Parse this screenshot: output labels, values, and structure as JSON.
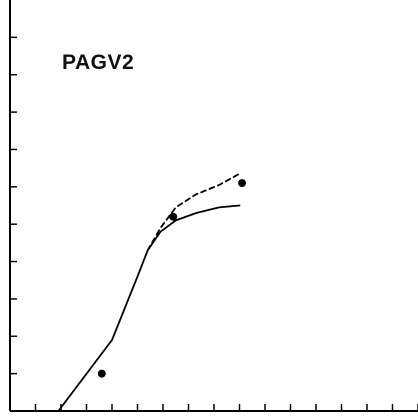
{
  "chart_data": {
    "type": "line",
    "title": "PAGV2",
    "xlabel": "",
    "ylabel": "",
    "xlim": [
      0,
      16
    ],
    "ylim": [
      0,
      11
    ],
    "x_ticks": [
      1,
      2,
      3,
      4,
      5,
      6,
      7,
      8,
      9,
      10,
      11,
      12,
      13,
      14,
      15,
      16
    ],
    "y_ticks": [
      1,
      2,
      3,
      4,
      5,
      6,
      7,
      8,
      9,
      10
    ],
    "grid": false,
    "series": [
      {
        "style": "solid",
        "points": [
          [
            1.9,
            0
          ],
          [
            4.0,
            1.9
          ],
          [
            5.0,
            3.6
          ],
          [
            5.4,
            4.3
          ],
          [
            5.9,
            4.8
          ],
          [
            6.5,
            5.1
          ],
          [
            7.3,
            5.3
          ],
          [
            8.2,
            5.45
          ],
          [
            9.0,
            5.5
          ]
        ]
      },
      {
        "style": "dashed",
        "points": [
          [
            5.4,
            4.3
          ],
          [
            5.9,
            4.9
          ],
          [
            6.5,
            5.45
          ],
          [
            7.3,
            5.8
          ],
          [
            8.2,
            6.05
          ],
          [
            9.0,
            6.35
          ]
        ]
      },
      {
        "style": "markers",
        "points": [
          [
            3.6,
            1.0
          ],
          [
            6.4,
            5.2
          ],
          [
            9.1,
            6.1
          ]
        ]
      }
    ]
  }
}
